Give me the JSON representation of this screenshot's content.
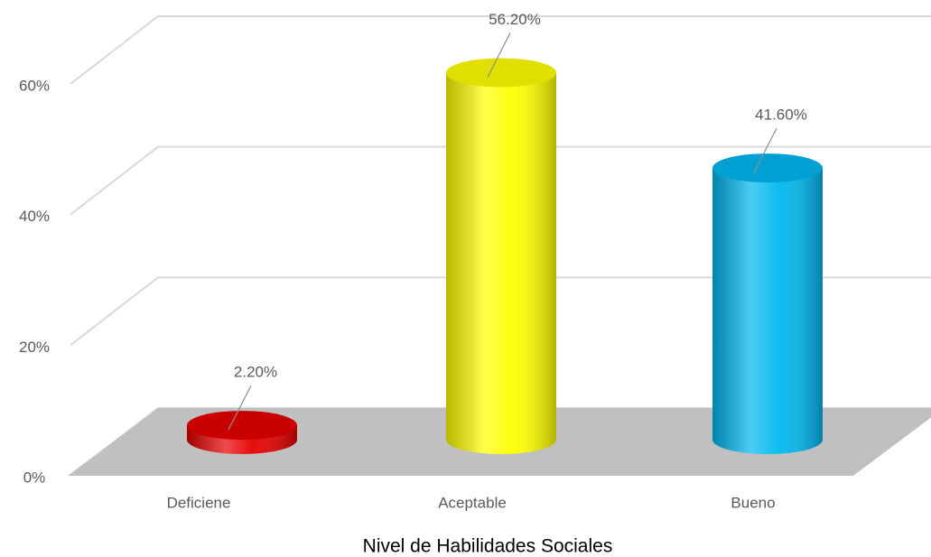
{
  "chart_data": {
    "type": "bar3d",
    "x_label": "Nivel de Habilidades Sociales",
    "categories": [
      "Deficiene",
      "Aceptable",
      "Bueno"
    ],
    "values": [
      2.2,
      56.2,
      41.6
    ],
    "value_labels": [
      "2.20%",
      "56.20%",
      "41.60%"
    ],
    "colors": [
      "#e60000",
      "#ffff00",
      "#00b8f0"
    ],
    "ylim": [
      0,
      60
    ],
    "yticks": [
      {
        "value": 0,
        "label": "0%"
      },
      {
        "value": 20,
        "label": "20%"
      },
      {
        "value": 40,
        "label": "40%"
      },
      {
        "value": 60,
        "label": "60%"
      }
    ],
    "grid": true
  }
}
